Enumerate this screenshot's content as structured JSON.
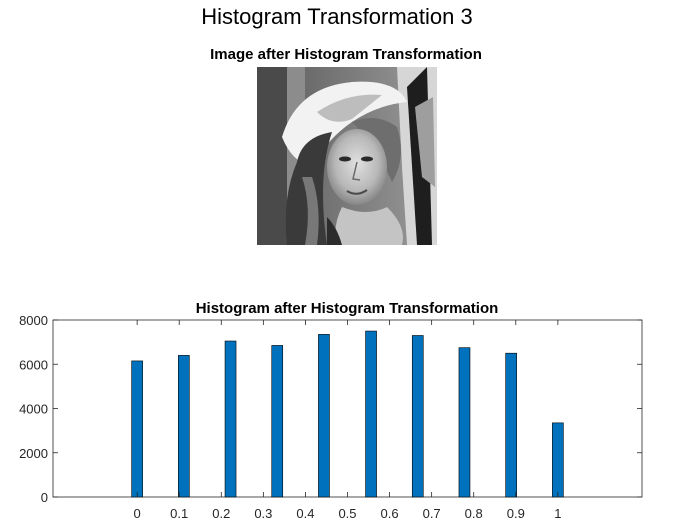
{
  "figure": {
    "suptitle": "Histogram Transformation 3"
  },
  "image_panel": {
    "title": "Image after Histogram Transformation",
    "subject": "grayscale-portrait-image"
  },
  "colors": {
    "bar": "#0072BD",
    "axis": "#262626"
  },
  "chart_data": {
    "type": "bar",
    "title": "Histogram after Histogram Transformation",
    "xlabel": "",
    "ylabel": "",
    "x": [
      0,
      0.111,
      0.222,
      0.333,
      0.444,
      0.556,
      0.667,
      0.778,
      0.889,
      1
    ],
    "values": [
      6150,
      6400,
      7050,
      6850,
      7350,
      7500,
      7300,
      6750,
      6500,
      3350
    ],
    "xticks": [
      0,
      0.1,
      0.2,
      0.3,
      0.4,
      0.5,
      0.6,
      0.7,
      0.8,
      0.9,
      1
    ],
    "xtick_labels": [
      "0",
      "0.1",
      "0.2",
      "0.3",
      "0.4",
      "0.5",
      "0.6",
      "0.7",
      "0.8",
      "0.9",
      "1"
    ],
    "yticks": [
      0,
      2000,
      4000,
      6000,
      8000
    ],
    "ytick_labels": [
      "0",
      "2000",
      "4000",
      "6000",
      "8000"
    ],
    "xlim": [
      -0.2,
      1.2
    ],
    "ylim": [
      0,
      8000
    ],
    "grid": false
  }
}
